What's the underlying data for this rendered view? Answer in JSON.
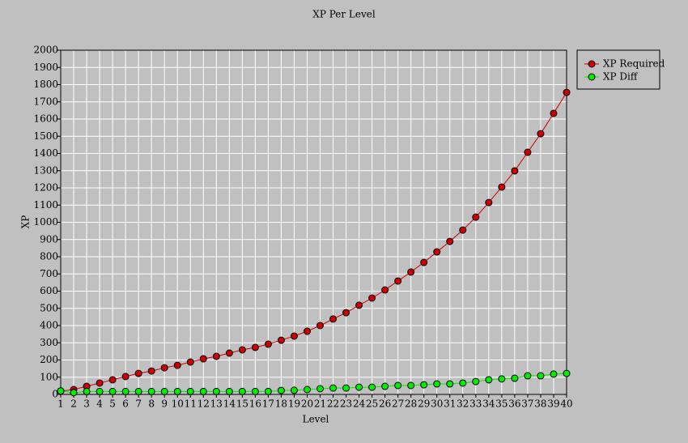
{
  "chart_data": {
    "type": "line",
    "title": "XP Per Level",
    "xlabel": "Level",
    "ylabel": "XP",
    "x": [
      1,
      2,
      3,
      4,
      5,
      6,
      7,
      8,
      9,
      10,
      11,
      12,
      13,
      14,
      15,
      16,
      17,
      18,
      19,
      20,
      21,
      22,
      23,
      24,
      25,
      26,
      27,
      28,
      29,
      30,
      31,
      32,
      33,
      34,
      35,
      36,
      37,
      38,
      39,
      40
    ],
    "series": [
      {
        "name": "XP Required",
        "color": "#cc0000",
        "values": [
          19,
          28,
          47,
          66,
          85,
          104,
          122,
          136,
          155,
          169,
          188,
          207,
          221,
          240,
          259,
          273,
          292,
          315,
          339,
          367,
          400,
          438,
          475,
          518,
          560,
          607,
          659,
          711,
          767,
          828,
          889,
          955,
          1030,
          1115,
          1205,
          1299,
          1407,
          1515,
          1633,
          1755
        ]
      },
      {
        "name": "XP Diff",
        "color": "#00ee00",
        "values": [
          20,
          10,
          17,
          17,
          17,
          17,
          17,
          17,
          17,
          17,
          17,
          17,
          17,
          17,
          17,
          17,
          17,
          23,
          24,
          28,
          33,
          37,
          37,
          42,
          42,
          47,
          52,
          52,
          56,
          61,
          61,
          66,
          75,
          85,
          90,
          94,
          108,
          108,
          118,
          122
        ]
      }
    ],
    "xlim": [
      1,
      40
    ],
    "xticks": [
      1,
      2,
      3,
      4,
      5,
      6,
      7,
      8,
      9,
      10,
      11,
      12,
      13,
      14,
      15,
      16,
      17,
      18,
      19,
      20,
      21,
      22,
      23,
      24,
      25,
      26,
      27,
      28,
      29,
      30,
      31,
      32,
      33,
      34,
      35,
      36,
      37,
      38,
      39,
      40
    ],
    "ylim": [
      0,
      2000
    ],
    "yticks": [
      0,
      100,
      200,
      300,
      400,
      500,
      600,
      700,
      800,
      900,
      1000,
      1100,
      1200,
      1300,
      1400,
      1500,
      1600,
      1700,
      1800,
      1900,
      2000
    ],
    "grid": true,
    "legend": "outside-right"
  }
}
